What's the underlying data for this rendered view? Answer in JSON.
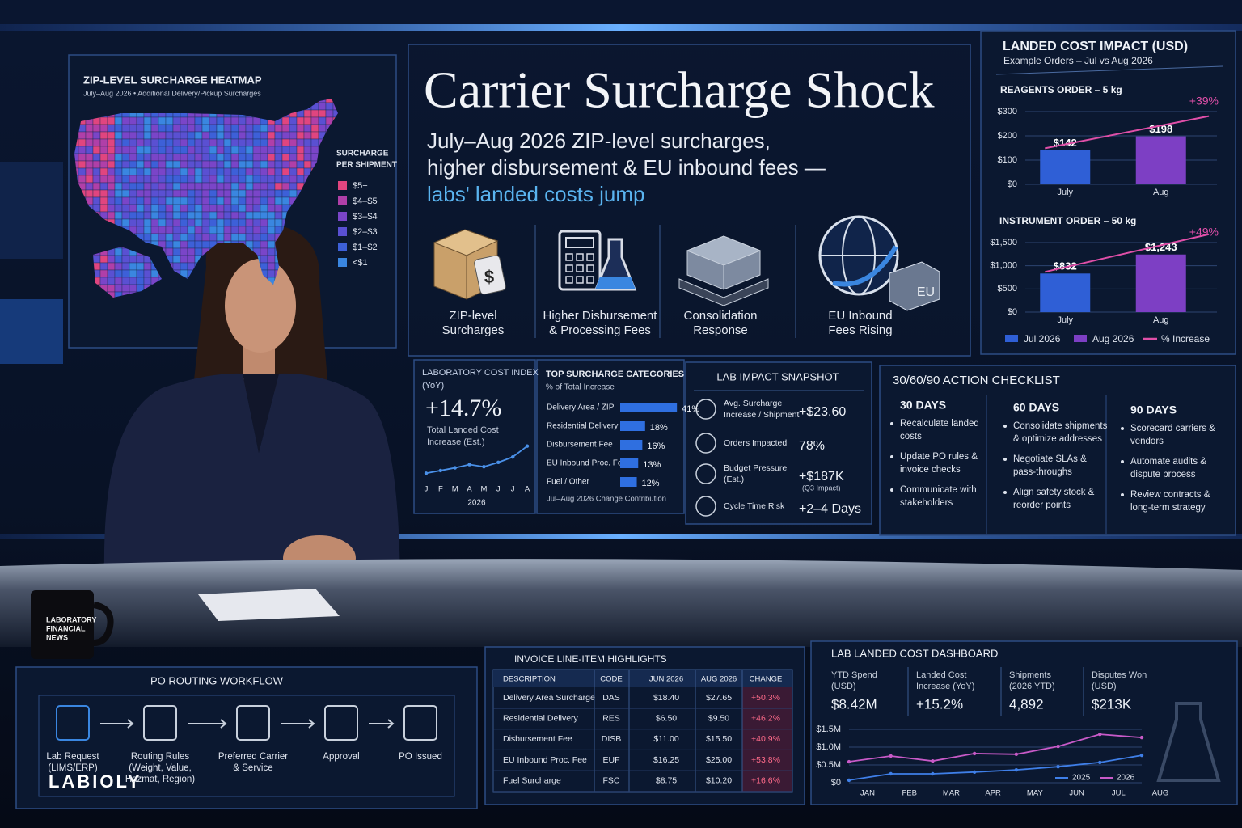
{
  "header": {
    "title": "Carrier Surcharge Shock",
    "subtitle": [
      "July–Aug 2026 ZIP-level surcharges,",
      "higher disbursement & EU inbound fees —",
      "labs' landed costs jump"
    ]
  },
  "heatmap": {
    "title": "ZIP-LEVEL SURCHARGE HEATMAP",
    "subtitle": "July–Aug 2026 • Additional Delivery/Pickup Surcharges",
    "legend_title": [
      "SURCHARGE",
      "PER SHIPMENT"
    ],
    "legend": [
      {
        "label": "$5+",
        "color": "#e0457f"
      },
      {
        "label": "$4–$5",
        "color": "#b03fa8"
      },
      {
        "label": "$3–$4",
        "color": "#7a45c8"
      },
      {
        "label": "$2–$3",
        "color": "#5a50d2"
      },
      {
        "label": "$1–$2",
        "color": "#3d60d8"
      },
      {
        "label": "<$1",
        "color": "#3a86e0"
      }
    ]
  },
  "icons": [
    {
      "label": [
        "ZIP-level",
        "Surcharges"
      ],
      "glyph": "$"
    },
    {
      "label": [
        "Higher Disbursement",
        "& Processing Fees"
      ]
    },
    {
      "label": [
        "Consolidation",
        "Response"
      ]
    },
    {
      "label": [
        "EU Inbound",
        "Fees Rising"
      ],
      "glyph": "EU"
    }
  ],
  "landed_cost": {
    "title": "LANDED COST IMPACT (USD)",
    "subtitle": "Example Orders – Jul vs Aug 2026",
    "legend": [
      {
        "name": "Jul 2026",
        "color": "#2f5fd6"
      },
      {
        "name": "Aug 2026",
        "color": "#7d3fc4"
      },
      {
        "name": "% Increase",
        "color": "#e04fa8"
      }
    ]
  },
  "cost_index": {
    "title": [
      "LABORATORY COST INDEX",
      "(YoY)"
    ],
    "value": "+14.7%",
    "caption": [
      "Total Landed Cost",
      "Increase (Est.)"
    ]
  },
  "top_categories": {
    "title": "TOP SURCHARGE CATEGORIES",
    "subtitle": "% of Total Increase",
    "footer": "Jul–Aug 2026 Change Contribution"
  },
  "snapshot": {
    "title": "LAB IMPACT SNAPSHOT",
    "rows": [
      {
        "label": [
          "Avg. Surcharge",
          "Increase / Shipment"
        ],
        "value": "+$23.60"
      },
      {
        "label": [
          "Orders Impacted"
        ],
        "value": "78%"
      },
      {
        "label": [
          "Budget Pressure",
          "(Est.)"
        ],
        "value": "+$187K",
        "note": "(Q3 Impact)"
      },
      {
        "label": [
          "Cycle Time Risk"
        ],
        "value": "+2–4 Days"
      }
    ]
  },
  "checklist": {
    "title": "30/60/90 ACTION CHECKLIST",
    "columns": [
      {
        "heading": "30 DAYS",
        "items": [
          [
            "Recalculate landed",
            "costs"
          ],
          [
            "Update PO rules &",
            "invoice checks"
          ],
          [
            "Communicate with",
            "stakeholders"
          ]
        ]
      },
      {
        "heading": "60 DAYS",
        "items": [
          [
            "Consolidate shipments",
            "& optimize addresses"
          ],
          [
            "Negotiate SLAs &",
            "pass-throughs"
          ],
          [
            "Align safety stock &",
            "reorder points"
          ]
        ]
      },
      {
        "heading": "90 DAYS",
        "items": [
          [
            "Scorecard carriers &",
            "vendors"
          ],
          [
            "Automate audits &",
            "dispute process"
          ],
          [
            "Review contracts &",
            "long-term strategy"
          ]
        ]
      }
    ]
  },
  "mug": {
    "text": [
      "LABORATORY",
      "FINANCIAL",
      "NEWS"
    ]
  },
  "logo": "LABIOLY",
  "workflow": {
    "title": "PO ROUTING WORKFLOW",
    "steps": [
      {
        "label": [
          "Lab Request",
          "(LIMS/ERP)"
        ]
      },
      {
        "label": [
          "Routing Rules",
          "(Weight, Value,",
          "Hazmat, Region)"
        ]
      },
      {
        "label": [
          "Preferred Carrier",
          "& Service"
        ]
      },
      {
        "label": [
          "Approval"
        ]
      },
      {
        "label": [
          "PO Issued"
        ]
      }
    ]
  },
  "invoice": {
    "title": "INVOICE LINE-ITEM HIGHLIGHTS",
    "columns": [
      "DESCRIPTION",
      "CODE",
      "JUN 2026",
      "AUG 2026",
      "CHANGE"
    ],
    "rows": [
      [
        "Delivery Area Surcharge",
        "DAS",
        "$18.40",
        "$27.65",
        "+50.3%"
      ],
      [
        "Residential Delivery",
        "RES",
        "$6.50",
        "$9.50",
        "+46.2%"
      ],
      [
        "Disbursement Fee",
        "DISB",
        "$11.00",
        "$15.50",
        "+40.9%"
      ],
      [
        "EU Inbound Proc. Fee",
        "EUF",
        "$16.25",
        "$25.00",
        "+53.8%"
      ],
      [
        "Fuel Surcharge",
        "FSC",
        "$8.75",
        "$10.20",
        "+16.6%"
      ]
    ]
  },
  "dashboard": {
    "title": "LAB LANDED COST DASHBOARD",
    "kpis": [
      {
        "label": [
          "YTD Spend",
          "(USD)"
        ],
        "value": "$8.42M"
      },
      {
        "label": [
          "Landed Cost",
          "Increase (YoY)"
        ],
        "value": "+15.2%"
      },
      {
        "label": [
          "Shipments",
          "(2026 YTD)"
        ],
        "value": "4,892"
      },
      {
        "label": [
          "Disputes Won",
          "(USD)"
        ],
        "value": "$213K"
      }
    ]
  },
  "chart_data": [
    {
      "type": "bar",
      "title": "REAGENTS ORDER – 5 kg",
      "categories": [
        "July",
        "Aug"
      ],
      "values": [
        142,
        198
      ],
      "value_labels": [
        "$142",
        "$198"
      ],
      "colors": [
        "#2f5fd6",
        "#7d3fc4"
      ],
      "ylim": [
        0,
        300
      ],
      "yticks": [
        {
          "value": 0,
          "label": "$0"
        },
        {
          "value": 100,
          "label": "$100"
        },
        {
          "value": 200,
          "label": "$200"
        },
        {
          "value": 300,
          "label": "$300"
        }
      ],
      "annotation": "+39%"
    },
    {
      "type": "bar",
      "title": "INSTRUMENT ORDER – 50 kg",
      "categories": [
        "July",
        "Aug"
      ],
      "values": [
        832,
        1243
      ],
      "value_labels": [
        "$832",
        "$1,243"
      ],
      "colors": [
        "#2f5fd6",
        "#7d3fc4"
      ],
      "ylim": [
        0,
        1500
      ],
      "yticks": [
        {
          "value": 0,
          "label": "$0"
        },
        {
          "value": 500,
          "label": "$500"
        },
        {
          "value": 1000,
          "label": "$1,000"
        },
        {
          "value": 1500,
          "label": "$1,500"
        }
      ],
      "annotation": "+49%"
    },
    {
      "type": "line",
      "categories": [
        "J",
        "F",
        "M",
        "A",
        "M",
        "J",
        "J",
        "A"
      ],
      "values": [
        1,
        1.5,
        2,
        2.6,
        2.2,
        3,
        4,
        6
      ],
      "color": "#4a90e8",
      "ylim": [
        0,
        7
      ],
      "xlabel": "2026"
    },
    {
      "type": "hbar",
      "categories": [
        "Delivery Area / ZIP",
        "Residential Delivery",
        "Disbursement Fee",
        "EU Inbound Proc. Fee",
        "Fuel / Other"
      ],
      "values": [
        41,
        18,
        16,
        13,
        12
      ],
      "value_labels": [
        "41%",
        "18%",
        "16%",
        "13%",
        "12%"
      ],
      "color": "#2f6fe0",
      "xlim": [
        0,
        45
      ]
    },
    {
      "type": "line",
      "categories": [
        "JAN",
        "FEB",
        "MAR",
        "APR",
        "MAY",
        "JUN",
        "JUL",
        "AUG"
      ],
      "series": [
        {
          "name": "2025",
          "color": "#3f7fe8",
          "values": [
            70000,
            250000,
            250000,
            300000,
            360000,
            450000,
            570000,
            770000
          ]
        },
        {
          "name": "2026",
          "color": "#c85ac8",
          "values": [
            590000,
            750000,
            610000,
            820000,
            800000,
            1020000,
            1360000,
            1270000
          ]
        }
      ],
      "ylim": [
        0,
        1500000
      ],
      "yticks": [
        {
          "value": 0,
          "label": "$0"
        },
        {
          "value": 500000,
          "label": "$0.5M"
        },
        {
          "value": 1000000,
          "label": "$1.0M"
        },
        {
          "value": 1500000,
          "label": "$1.5M"
        }
      ],
      "grid": true
    }
  ]
}
